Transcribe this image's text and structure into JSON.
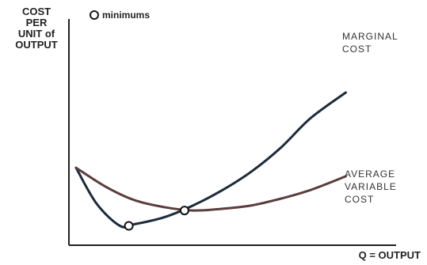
{
  "chart_data": {
    "type": "line",
    "title": "",
    "ylabel_lines": [
      "COST",
      "PER",
      "UNIT of",
      "OUTPUT"
    ],
    "xlabel": "Q = OUTPUT",
    "legend": {
      "marker": "circle",
      "label": "minimums",
      "placement": "top-left"
    },
    "xlim": [
      0,
      100
    ],
    "ylim": [
      0,
      100
    ],
    "grid": false,
    "series": [
      {
        "label_lines": [
          "MARGINAL",
          "COST"
        ],
        "color": "#1c2a3a",
        "x": [
          0,
          7,
          15,
          20,
          30,
          40,
          50,
          60,
          70,
          80,
          92
        ],
        "y": [
          37,
          16,
          3,
          4,
          8,
          15,
          24,
          35,
          49,
          66,
          81
        ]
      },
      {
        "label_lines": [
          "AVERAGE",
          "VARIABLE",
          "COST"
        ],
        "color": "#5a3d3d",
        "x": [
          0,
          10,
          20,
          30,
          40,
          50,
          60,
          70,
          80,
          92
        ],
        "y": [
          37,
          26,
          18,
          14,
          12,
          13,
          15,
          19,
          24,
          32
        ]
      }
    ],
    "minimums": [
      {
        "series": "MARGINAL COST",
        "x": 18,
        "y": 3
      },
      {
        "series": "AVERAGE VARIABLE COST",
        "x": 37,
        "y": 12
      }
    ]
  }
}
